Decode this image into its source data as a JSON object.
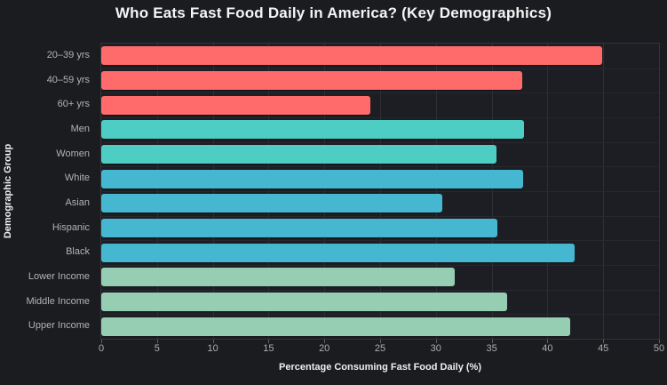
{
  "chart_data": {
    "type": "bar",
    "orientation": "horizontal",
    "title": "Who Eats Fast Food Daily in America? (Key Demographics)",
    "xlabel": "Percentage Consuming Fast Food Daily (%)",
    "ylabel": "Demographic Group",
    "xlim": [
      0,
      50
    ],
    "xticks": [
      0,
      5,
      10,
      15,
      20,
      25,
      30,
      35,
      40,
      45,
      50
    ],
    "grid": true,
    "legend": "none",
    "categories": [
      "20–39 yrs",
      "40–59 yrs",
      "60+ yrs",
      "Men",
      "Women",
      "White",
      "Asian",
      "Hispanic",
      "Black",
      "Lower Income",
      "Middle Income",
      "Upper Income"
    ],
    "values": [
      44.9,
      37.7,
      24.1,
      37.9,
      35.4,
      37.8,
      30.6,
      35.5,
      42.4,
      31.7,
      36.4,
      42.0
    ],
    "groups": [
      "age",
      "age",
      "age",
      "gender",
      "gender",
      "race",
      "race",
      "race",
      "race",
      "income",
      "income",
      "income"
    ],
    "group_colors": {
      "age": "#FF6B6B",
      "gender": "#4ECDC4",
      "race": "#45B7D1",
      "income": "#96CEB4"
    }
  },
  "theme": {
    "figure_background": "#1b1c20",
    "plot_background": "#1d1e23",
    "grid_color_vertical": "#2d2f35",
    "grid_color_horizontal": "#26282d",
    "title_color": "#f5f5f5",
    "tick_label_color": "#b3b3b3",
    "axis_label_color": "#efefef"
  }
}
